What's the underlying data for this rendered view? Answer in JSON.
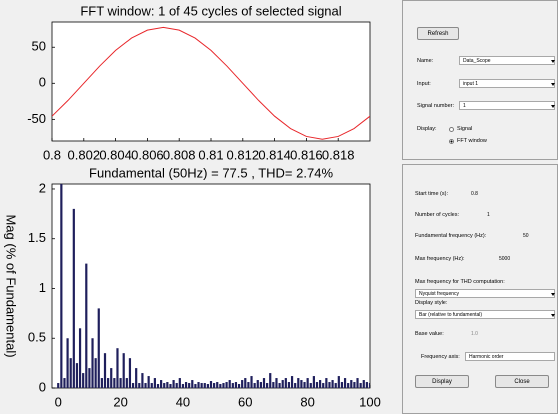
{
  "top_chart": {
    "type": "line",
    "title": "FFT window: 1 of 45 cycles of selected signal",
    "x": [
      0.8,
      0.801,
      0.802,
      0.803,
      0.804,
      0.805,
      0.806,
      0.807,
      0.808,
      0.809,
      0.81,
      0.811,
      0.812,
      0.813,
      0.814,
      0.815,
      0.816,
      0.817,
      0.818,
      0.819,
      0.82
    ],
    "series": [
      {
        "color": "#e8262a",
        "values": [
          -45.6,
          -23.9,
          0,
          23.9,
          45.6,
          62.7,
          73.7,
          77.5,
          73.7,
          62.7,
          45.6,
          23.9,
          0,
          -23.9,
          -45.6,
          -62.7,
          -73.7,
          -77.5,
          -73.7,
          -62.7,
          -45.6
        ]
      }
    ],
    "xlim": [
      0.8,
      0.82
    ],
    "xticks": [
      0.8,
      0.802,
      0.804,
      0.806,
      0.808,
      0.81,
      0.812,
      0.814,
      0.816,
      0.818
    ],
    "ylim": [
      -80,
      85
    ],
    "yticks": [
      -50,
      0,
      50
    ]
  },
  "bottom_chart": {
    "type": "bar",
    "title": "Fundamental (50Hz) = 77.5 , THD= 2.74%",
    "y_label": "Mag (% of Fundamental)",
    "x": [
      0,
      1,
      2,
      3,
      4,
      5,
      6,
      7,
      8,
      9,
      10,
      11,
      12,
      13,
      14,
      15,
      16,
      17,
      18,
      19,
      20,
      21,
      22,
      23,
      24,
      25,
      26,
      27,
      28,
      29,
      30,
      31,
      32,
      33,
      34,
      35,
      36,
      37,
      38,
      39,
      40,
      41,
      42,
      43,
      44,
      45,
      46,
      47,
      48,
      49,
      50,
      51,
      52,
      53,
      54,
      55,
      56,
      57,
      58,
      59,
      60,
      61,
      62,
      63,
      64,
      65,
      66,
      67,
      68,
      69,
      70,
      71,
      72,
      73,
      74,
      75,
      76,
      77,
      78,
      79,
      80,
      81,
      82,
      83,
      84,
      85,
      86,
      87,
      88,
      89,
      90,
      91,
      92,
      93,
      94,
      95,
      96,
      97,
      98,
      99,
      100
    ],
    "series": [
      {
        "color": "#1f1f5c",
        "values": [
          0.05,
          100,
          0.1,
          0.5,
          0.3,
          1.8,
          0.25,
          0.6,
          0.15,
          1.25,
          0.2,
          0.5,
          0.3,
          0.8,
          0.1,
          0.35,
          0.1,
          0.2,
          0.1,
          0.4,
          0.1,
          0.35,
          0.1,
          0.3,
          0.05,
          0.2,
          0.05,
          0.15,
          0.05,
          0.12,
          0.05,
          0.1,
          0.04,
          0.08,
          0.05,
          0.06,
          0.04,
          0.08,
          0.05,
          0.1,
          0.04,
          0.06,
          0.05,
          0.08,
          0.04,
          0.06,
          0.05,
          0.05,
          0.04,
          0.07,
          0.05,
          0.06,
          0.04,
          0.05,
          0.06,
          0.08,
          0.05,
          0.06,
          0.04,
          0.08,
          0.1,
          0.06,
          0.12,
          0.05,
          0.08,
          0.06,
          0.1,
          0.05,
          0.15,
          0.06,
          0.1,
          0.05,
          0.08,
          0.1,
          0.06,
          0.12,
          0.05,
          0.1,
          0.08,
          0.06,
          0.1,
          0.05,
          0.12,
          0.06,
          0.08,
          0.05,
          0.1,
          0.06,
          0.08,
          0.05,
          0.12,
          0.06,
          0.1,
          0.05,
          0.08,
          0.06,
          0.1,
          0.05,
          0.08,
          0.06,
          0.05
        ]
      }
    ],
    "xlim": [
      -2,
      100
    ],
    "xticks": [
      0,
      20,
      40,
      60,
      80,
      100
    ],
    "ylim": [
      0,
      2.05
    ],
    "yticks": [
      0,
      0.5,
      1,
      1.5,
      2
    ]
  },
  "signal_panel": {
    "refresh": "Refresh",
    "name_label": "Name:",
    "name_value": "Data_Scope",
    "input_label": "Input:",
    "input_value": "input 1",
    "signal_label": "Signal number:",
    "signal_value": "1",
    "display_label": "Display:",
    "option_signal": "Signal",
    "option_fft": "FFT window"
  },
  "fft_panel": {
    "start_label": "Start time (s):",
    "start_value": "0.8",
    "cycles_label": "Number of cycles:",
    "cycles_value": "1",
    "fund_label": "Fundamental frequency (Hz):",
    "fund_value": "50",
    "max_label": "Max frequency (Hz):",
    "max_value": "5000",
    "thd_label": "Max frequency for THD computation:",
    "thd_value": "Nyquist frequency",
    "style_label": "Display style:",
    "style_value": "Bar (relative to fundamental)",
    "base_label": "Base value:",
    "base_value": "1.0",
    "axis_label": "Frequency axis:",
    "axis_value": "Harmonic order",
    "display_button": "Display",
    "close_button": "Close"
  }
}
